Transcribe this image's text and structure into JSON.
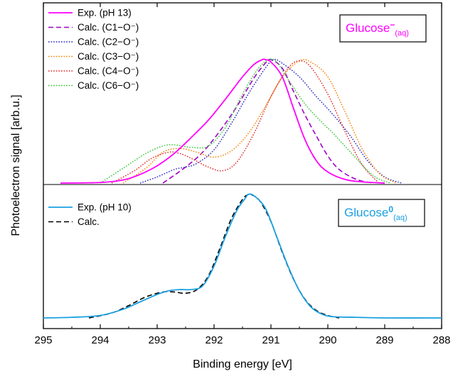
{
  "chart_data": {
    "type": "line",
    "xlabel": "Binding energy [eV]",
    "ylabel": "Photoelectron signal [arb.u.]",
    "xlim": [
      295,
      288
    ],
    "x_reversed": true,
    "x_ticks": [
      295,
      294,
      293,
      292,
      291,
      290,
      289,
      288
    ],
    "y_ticks_labeled": false,
    "grid": false,
    "panels": [
      {
        "id": "top",
        "badge": {
          "main": "Glucose",
          "sup": "−",
          "sub": "(aq)",
          "color": "#ff00ff"
        },
        "legend_position": "top-left",
        "series": [
          {
            "name": "Exp. (pH 13)",
            "color": "#ff00ff",
            "dash": "solid",
            "x": [
              294.7,
              294.0,
              293.6,
              293.3,
              293.0,
              292.7,
              292.4,
              292.1,
              291.8,
              291.5,
              291.3,
              291.15,
              291.1,
              291.0,
              290.8,
              290.6,
              290.4,
              290.2,
              290.0,
              289.7,
              289.4,
              289.0
            ],
            "y": [
              0.0,
              0.005,
              0.025,
              0.07,
              0.14,
              0.24,
              0.37,
              0.51,
              0.68,
              0.86,
              0.96,
              1.0,
              1.0,
              0.98,
              0.86,
              0.6,
              0.35,
              0.18,
              0.09,
              0.03,
              0.01,
              0.0
            ]
          },
          {
            "name": "Calc. (C1−O⁻)",
            "color": "#a000c8",
            "dash": "dashed",
            "x": [
              292.9,
              292.5,
              292.2,
              291.9,
              291.6,
              291.3,
              291.1,
              291.0,
              290.8,
              290.6,
              290.4,
              290.2,
              290.0,
              289.8,
              289.5,
              289.2
            ],
            "y": [
              0.0,
              0.13,
              0.25,
              0.42,
              0.62,
              0.85,
              0.97,
              1.0,
              0.93,
              0.74,
              0.55,
              0.38,
              0.22,
              0.11,
              0.03,
              0.0
            ]
          },
          {
            "name": "Calc. (C2−O⁻)",
            "color": "#2020c0",
            "dash": "dotted",
            "x": [
              293.3,
              293.0,
              292.7,
              292.5,
              292.3,
              292.0,
              291.7,
              291.4,
              291.1,
              290.95,
              290.8,
              290.5,
              290.2,
              289.9,
              289.6,
              289.3,
              289.0,
              288.7
            ],
            "y": [
              0.0,
              0.05,
              0.11,
              0.13,
              0.16,
              0.27,
              0.48,
              0.72,
              0.93,
              1.0,
              0.97,
              0.86,
              0.7,
              0.55,
              0.38,
              0.18,
              0.05,
              0.0
            ]
          },
          {
            "name": "Calc. (C3−O⁻)",
            "color": "#f08000",
            "dash": "dotted",
            "x": [
              293.6,
              293.2,
              292.9,
              292.6,
              292.3,
              292.0,
              291.7,
              291.4,
              291.1,
              290.8,
              290.5,
              290.3,
              290.0,
              289.7,
              289.4,
              289.1,
              288.8
            ],
            "y": [
              0.0,
              0.12,
              0.25,
              0.28,
              0.25,
              0.21,
              0.26,
              0.4,
              0.62,
              0.86,
              0.99,
              0.98,
              0.86,
              0.58,
              0.28,
              0.08,
              0.0
            ]
          },
          {
            "name": "Calc. (C4−O⁻)",
            "color": "#e02020",
            "dash": "dotted",
            "x": [
              293.8,
              293.4,
              293.1,
              292.8,
              292.6,
              292.4,
              292.1,
              291.85,
              291.6,
              291.3,
              291.0,
              290.7,
              290.5,
              290.3,
              290.0,
              289.7,
              289.4,
              289.1
            ],
            "y": [
              0.0,
              0.1,
              0.2,
              0.25,
              0.24,
              0.2,
              0.13,
              0.1,
              0.17,
              0.4,
              0.7,
              0.93,
              0.99,
              0.94,
              0.72,
              0.42,
              0.15,
              0.0
            ]
          },
          {
            "name": "Calc. (C6−O⁻)",
            "color": "#30c030",
            "dash": "dotted",
            "x": [
              294.0,
              293.6,
              293.2,
              292.9,
              292.7,
              292.4,
              292.1,
              291.8,
              291.5,
              291.2,
              290.95,
              290.7,
              290.4,
              290.1,
              289.9,
              289.6,
              289.2,
              288.9
            ],
            "y": [
              0.0,
              0.12,
              0.24,
              0.3,
              0.31,
              0.29,
              0.3,
              0.45,
              0.72,
              0.94,
              1.0,
              0.84,
              0.64,
              0.49,
              0.4,
              0.25,
              0.06,
              0.0
            ]
          }
        ]
      },
      {
        "id": "bottom",
        "badge": {
          "main": "Glucose",
          "sup": "0",
          "sub": "(aq)",
          "color": "#1aa0e0"
        },
        "legend_position": "top-left",
        "series": [
          {
            "name": "Exp. (pH 10)",
            "color": "#1aa0e0",
            "dash": "solid",
            "x": [
              295.0,
              294.5,
              294.0,
              293.6,
              293.3,
              293.0,
              292.8,
              292.6,
              292.4,
              292.2,
              292.0,
              291.8,
              291.6,
              291.45,
              291.4,
              291.3,
              291.1,
              290.9,
              290.7,
              290.5,
              290.3,
              290.1,
              289.9,
              289.5,
              289.0,
              288.0
            ],
            "y": [
              0.0,
              0.005,
              0.02,
              0.07,
              0.13,
              0.19,
              0.22,
              0.23,
              0.23,
              0.26,
              0.42,
              0.66,
              0.87,
              0.97,
              1.0,
              0.99,
              0.89,
              0.66,
              0.42,
              0.22,
              0.09,
              0.03,
              0.01,
              0.005,
              0.0,
              0.0
            ]
          },
          {
            "name": "Calc.",
            "color": "#000000",
            "dash": "dashed",
            "x": [
              294.2,
              293.8,
              293.5,
              293.2,
              292.9,
              292.7,
              292.5,
              292.3,
              292.1,
              291.9,
              291.7,
              291.5,
              291.4,
              291.35,
              291.2,
              291.0,
              290.8,
              290.6,
              290.4,
              290.2,
              290.0,
              289.8
            ],
            "y": [
              0.0,
              0.04,
              0.1,
              0.17,
              0.21,
              0.21,
              0.2,
              0.23,
              0.34,
              0.56,
              0.8,
              0.96,
              1.0,
              1.0,
              0.95,
              0.78,
              0.53,
              0.31,
              0.15,
              0.06,
              0.02,
              0.0
            ]
          }
        ]
      }
    ]
  }
}
